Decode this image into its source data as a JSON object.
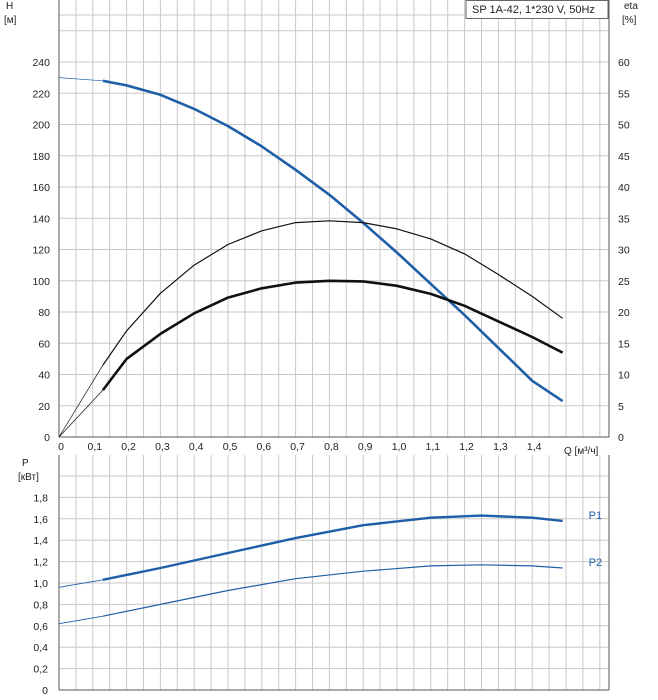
{
  "chart_data": [
    {
      "type": "line",
      "legend": "SP 1A-42, 1*230 V, 50Hz",
      "ylabel_left": [
        "H",
        "[м]"
      ],
      "ylabel_right": [
        "eta",
        "[%]"
      ],
      "xlabel": "Q [м³/ч]",
      "xlim": [
        0,
        1.6
      ],
      "ylim_left": [
        0,
        250
      ],
      "ylim_right": [
        0,
        62.5
      ],
      "x_ticks": [
        "0",
        "0,1",
        "0,2",
        "0,3",
        "0,4",
        "0,5",
        "0,6",
        "0,7",
        "0,8",
        "0,9",
        "1,0",
        "1,1",
        "1,2",
        "1,3",
        "1,4"
      ],
      "y_ticks_left": [
        "0",
        "20",
        "40",
        "60",
        "80",
        "100",
        "120",
        "140",
        "160",
        "180",
        "200",
        "220",
        "240"
      ],
      "y_ticks_right": [
        "0",
        "5",
        "10",
        "15",
        "20",
        "25",
        "30",
        "35",
        "40",
        "45",
        "50",
        "55",
        "60"
      ],
      "series": [
        {
          "axis": "left",
          "color": "#1f5fa8",
          "points": [
            [
              0,
              230
            ],
            [
              0.13,
              228
            ],
            [
              0.2,
              225
            ],
            [
              0.3,
              219
            ],
            [
              0.4,
              210
            ],
            [
              0.5,
              199
            ],
            [
              0.6,
              186
            ],
            [
              0.7,
              171
            ],
            [
              0.8,
              155
            ],
            [
              0.9,
              137
            ],
            [
              1.0,
              118
            ],
            [
              1.1,
              98
            ],
            [
              1.2,
              78
            ],
            [
              1.3,
              57
            ],
            [
              1.4,
              36
            ],
            [
              1.49,
              23
            ]
          ]
        },
        {
          "axis": "right",
          "color": "#111111",
          "points": [
            [
              0,
              0
            ],
            [
              0.13,
              11.5
            ],
            [
              0.2,
              17
            ],
            [
              0.3,
              23
            ],
            [
              0.4,
              27.5
            ],
            [
              0.5,
              30.8
            ],
            [
              0.6,
              33
            ],
            [
              0.7,
              34.3
            ],
            [
              0.8,
              34.6
            ],
            [
              0.9,
              34.3
            ],
            [
              1.0,
              33.3
            ],
            [
              1.1,
              31.7
            ],
            [
              1.2,
              29.3
            ],
            [
              1.3,
              26
            ],
            [
              1.4,
              22.5
            ],
            [
              1.49,
              19
            ]
          ]
        },
        {
          "axis": "right",
          "color": "#111111",
          "points": [
            [
              0,
              0
            ],
            [
              0.13,
              7.5
            ],
            [
              0.2,
              12.5
            ],
            [
              0.3,
              16.5
            ],
            [
              0.4,
              19.8
            ],
            [
              0.5,
              22.3
            ],
            [
              0.6,
              23.8
            ],
            [
              0.7,
              24.7
            ],
            [
              0.8,
              25
            ],
            [
              0.9,
              24.9
            ],
            [
              1.0,
              24.2
            ],
            [
              1.1,
              22.9
            ],
            [
              1.2,
              21
            ],
            [
              1.3,
              18.5
            ],
            [
              1.4,
              16
            ],
            [
              1.49,
              13.5
            ]
          ]
        }
      ]
    },
    {
      "type": "line",
      "ylabel": [
        "P",
        "[кВт]"
      ],
      "xlim": [
        0,
        1.6
      ],
      "ylim": [
        0,
        2.0
      ],
      "y_ticks": [
        "0",
        "0,2",
        "0,4",
        "0,6",
        "0,8",
        "1,0",
        "1,2",
        "1,4",
        "1,6",
        "1,8"
      ],
      "series": [
        {
          "name": "P1",
          "color": "#1f5fa8",
          "points": [
            [
              0,
              0.96
            ],
            [
              0.13,
              1.03
            ],
            [
              0.3,
              1.14
            ],
            [
              0.5,
              1.28
            ],
            [
              0.7,
              1.42
            ],
            [
              0.9,
              1.54
            ],
            [
              1.1,
              1.61
            ],
            [
              1.25,
              1.63
            ],
            [
              1.4,
              1.61
            ],
            [
              1.49,
              1.58
            ]
          ]
        },
        {
          "name": "P2",
          "color": "#1f5fa8",
          "points": [
            [
              0,
              0.62
            ],
            [
              0.13,
              0.69
            ],
            [
              0.3,
              0.8
            ],
            [
              0.5,
              0.93
            ],
            [
              0.7,
              1.04
            ],
            [
              0.9,
              1.11
            ],
            [
              1.1,
              1.16
            ],
            [
              1.25,
              1.17
            ],
            [
              1.4,
              1.16
            ],
            [
              1.49,
              1.14
            ]
          ]
        }
      ]
    }
  ]
}
